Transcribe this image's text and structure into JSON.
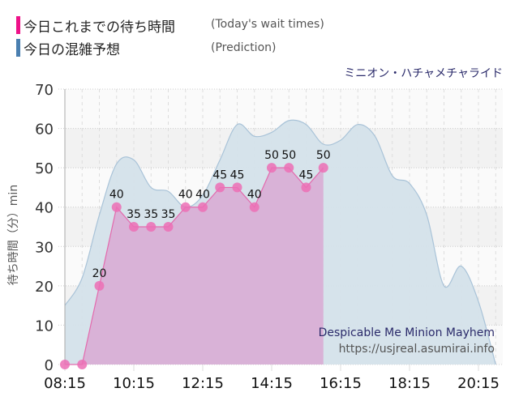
{
  "legend": {
    "items": [
      {
        "label": "今日これまでの待ち時間",
        "english": "(Today's wait times)",
        "color": "#ee1188"
      },
      {
        "label": "今日の混雑予想",
        "english": "(Prediction)",
        "color": "#4a7fb0"
      }
    ]
  },
  "ride_name": "ミニオン・ハチャメチャライド",
  "watermark": {
    "title": "Despicable Me Minion Mayhem",
    "url": "https://usjreal.asumirai.info"
  },
  "colors": {
    "actual_point": "#ec6fb5",
    "actual_fill": "#d9a9d4",
    "prediction_fill": "#d4e1ea",
    "prediction_line": "#a9c3d8",
    "plot_bg": "#f6f6f6"
  },
  "chart_data": {
    "type": "area",
    "title": "ミニオン・ハチャメチャライド",
    "xlabel": "",
    "ylabel": "待ち時間（分）min",
    "ylim": [
      0,
      70
    ],
    "y_ticks": [
      0,
      10,
      20,
      30,
      40,
      50,
      60,
      70
    ],
    "x_ticks": [
      "08:15",
      "10:15",
      "12:15",
      "14:15",
      "16:15",
      "18:15",
      "20:15"
    ],
    "grid": true,
    "legend_position": "top-left",
    "series": [
      {
        "name": "今日これまでの待ち時間 (Today's wait times)",
        "x": [
          "08:15",
          "08:45",
          "09:15",
          "09:45",
          "10:15",
          "10:45",
          "11:15",
          "11:45",
          "12:15",
          "12:45",
          "13:15",
          "13:45",
          "14:15",
          "14:45",
          "15:15",
          "15:45"
        ],
        "values": [
          0,
          0,
          20,
          40,
          35,
          35,
          35,
          40,
          40,
          45,
          45,
          40,
          50,
          50,
          45,
          50
        ],
        "labels_shown": [
          null,
          null,
          20,
          40,
          35,
          35,
          35,
          40,
          40,
          45,
          45,
          40,
          50,
          50,
          45,
          50
        ]
      },
      {
        "name": "今日の混雑予想 (Prediction)",
        "x": [
          "08:15",
          "08:45",
          "09:15",
          "09:45",
          "10:15",
          "10:45",
          "11:15",
          "11:45",
          "12:15",
          "12:45",
          "13:15",
          "13:45",
          "14:15",
          "14:45",
          "15:15",
          "15:45",
          "16:15",
          "16:45",
          "17:15",
          "17:45",
          "18:15",
          "18:45",
          "19:15",
          "19:45",
          "20:15",
          "20:45"
        ],
        "values": [
          15,
          22,
          38,
          51,
          52,
          45,
          44,
          40,
          43,
          52,
          61,
          58,
          59,
          62,
          61,
          56,
          57,
          61,
          58,
          48,
          46,
          38,
          20,
          25,
          16,
          0
        ]
      }
    ]
  }
}
